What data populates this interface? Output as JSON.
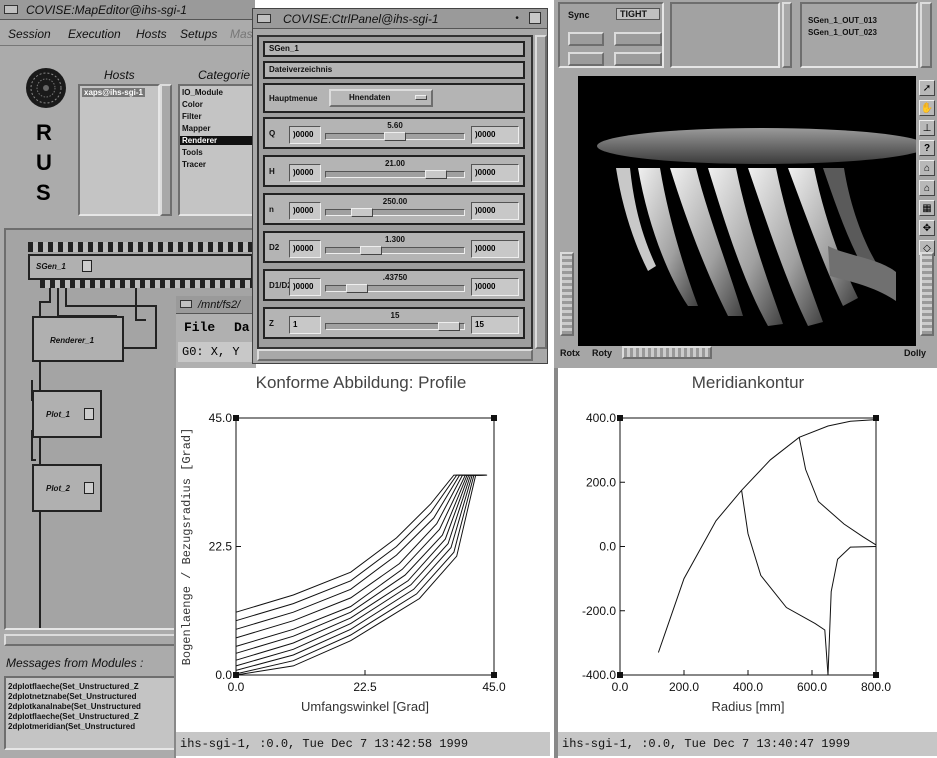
{
  "map_editor": {
    "title": "COVISE:MapEditor@ihs-sgi-1",
    "menus": [
      "Session",
      "Execution",
      "Hosts",
      "Setups",
      "Mas"
    ],
    "hosts_label": "Hosts",
    "categories_label": "Categorie",
    "host_items": [
      "xaps@ihs-sgi-1"
    ],
    "category_items": [
      "IO_Module",
      "Color",
      "Filter",
      "Mapper",
      "Renderer",
      "Tools",
      "Tracer"
    ],
    "selected_category": "Renderer",
    "logo_letters": [
      "R",
      "U",
      "S"
    ],
    "modules": [
      {
        "label": "SGen_1"
      },
      {
        "label": "Renderer_1"
      },
      {
        "label": "Plot_1"
      },
      {
        "label": "Plot_2"
      }
    ],
    "messages_label": "Messages from Modules :",
    "messages": [
      "2dplotflaeche(Set_Unstructured_Z",
      "2dplotnetznabe(Set_Unstructured",
      "2dplotkanalnabe(Set_Unstructured",
      "2dplotflaeche(Set_Unstructured_Z",
      "2dplotmeridian(Set_Unstructured"
    ]
  },
  "ctrl_panel": {
    "title": "COVISE:CtrlPanel@ihs-sgi-1",
    "module_name": "SGen_1",
    "dir_label": "Dateiverzeichnis",
    "menu_label": "Hauptmenue",
    "menu_value": "Hnendaten",
    "sliders": [
      {
        "name": "Q",
        "min": ")0000",
        "value": "5.60",
        "max": ")0000",
        "fraction": 0.5
      },
      {
        "name": "H",
        "min": ")0000",
        "value": "21.00",
        "max": ")0000",
        "fraction": 0.85
      },
      {
        "name": "n",
        "min": ")0000",
        "value": "250.00",
        "max": ")0000",
        "fraction": 0.22
      },
      {
        "name": "D2",
        "min": ")0000",
        "value": "1.300",
        "max": ")0000",
        "fraction": 0.3
      },
      {
        "name": "D1/D2",
        "min": ")0000",
        "value": ".43750",
        "max": ")0000",
        "fraction": 0.18
      },
      {
        "name": "Z",
        "min": "1",
        "value": "15",
        "max": "15",
        "fraction": 0.96
      }
    ]
  },
  "renderer": {
    "sync_label": "Sync",
    "sync_value": "TIGHT",
    "outputs": [
      "SGen_1_OUT_013",
      "SGen_1_OUT_023"
    ],
    "bottom_labels": [
      "Rotx",
      "Roty",
      "Dolly"
    ],
    "tool_icons": [
      "pointer-icon",
      "hand-icon",
      "axes-icon",
      "help-icon",
      "home-icon",
      "set-home-icon",
      "view-all-icon",
      "seek-icon",
      "perspective-icon"
    ]
  },
  "text_window": {
    "title": "/mnt/fs2/",
    "menu_items": [
      "File",
      "Da"
    ],
    "coord_line": "G0: X, Y"
  },
  "plot_left": {
    "status": "ihs-sgi-1, :0.0, Tue Dec  7 13:42:58 1999",
    "chart_data": {
      "type": "line",
      "title": "Konforme Abbildung: Profile",
      "xlabel": "Umfangswinkel [Grad]",
      "ylabel": "Bogenlaenge / Bezugsradius [Grad]",
      "xlim": [
        0.0,
        45.0
      ],
      "ylim": [
        0.0,
        45.0
      ],
      "xticks": [
        "0.0",
        "22.5",
        "45.0"
      ],
      "yticks": [
        "0.0",
        "22.5",
        "45.0"
      ],
      "series": [
        {
          "x": [
            0,
            10,
            20,
            28,
            34,
            38,
            41
          ],
          "y": [
            11,
            14,
            18,
            24,
            30,
            35,
            35
          ]
        },
        {
          "x": [
            0,
            10,
            20,
            28,
            34,
            38.5,
            41.5
          ],
          "y": [
            9.5,
            12.5,
            16.5,
            22.5,
            28.5,
            35,
            35
          ]
        },
        {
          "x": [
            0,
            10,
            20,
            28,
            34.5,
            39,
            42
          ],
          "y": [
            8,
            11,
            15,
            21,
            27.5,
            35,
            35
          ]
        },
        {
          "x": [
            0,
            10,
            20,
            28.5,
            35,
            39.5,
            42.3
          ],
          "y": [
            6.5,
            9.5,
            13.5,
            19.5,
            26.5,
            35,
            35
          ]
        },
        {
          "x": [
            0,
            10,
            20,
            29,
            35.5,
            40,
            42.6
          ],
          "y": [
            5,
            8,
            12,
            18.5,
            25.5,
            35,
            35
          ]
        },
        {
          "x": [
            0,
            10,
            20,
            29.5,
            36,
            40.3,
            42.8
          ],
          "y": [
            3.8,
            6.8,
            11,
            17.5,
            24.5,
            35,
            35
          ]
        },
        {
          "x": [
            0,
            10,
            20,
            30,
            36.5,
            40.6,
            43
          ],
          "y": [
            2.6,
            5.6,
            10,
            16.5,
            23.8,
            35,
            35
          ]
        },
        {
          "x": [
            0,
            10,
            20,
            30.5,
            37,
            40.9,
            43.2
          ],
          "y": [
            1.6,
            4.5,
            9,
            15.8,
            23,
            35,
            35
          ]
        },
        {
          "x": [
            0,
            10,
            20,
            31,
            37.5,
            41.2,
            43.4
          ],
          "y": [
            0.8,
            3.5,
            8,
            15,
            22.3,
            35,
            35
          ]
        },
        {
          "x": [
            0,
            10,
            20,
            31.5,
            38,
            41.5,
            43.6
          ],
          "y": [
            0.2,
            2.5,
            7,
            14.2,
            21.5,
            35,
            35
          ]
        },
        {
          "x": [
            0,
            10,
            20,
            32,
            38.5,
            41.8,
            43.8
          ],
          "y": [
            0,
            1.6,
            6,
            13.4,
            20.8,
            35,
            35
          ]
        }
      ]
    }
  },
  "plot_right": {
    "status": "ihs-sgi-1, :0.0, Tue Dec  7 13:40:47 1999",
    "chart_data": {
      "type": "line",
      "title": "Meridiankontur",
      "xlabel": "Radius [mm]",
      "ylabel": "",
      "xlim": [
        0.0,
        800.0
      ],
      "ylim": [
        -400.0,
        400.0
      ],
      "xticks": [
        "0.0",
        "200.0",
        "400.0",
        "600.0",
        "800.0"
      ],
      "yticks": [
        "400.0",
        "200.0",
        "0.0",
        "-200.0",
        "-400.0"
      ],
      "series": [
        {
          "x": [
            120,
            200,
            300,
            380,
            470,
            560,
            650,
            720,
            800
          ],
          "y": [
            -330,
            -100,
            80,
            175,
            270,
            340,
            375,
            390,
            395
          ]
        },
        {
          "x": [
            380,
            400,
            440,
            520,
            610,
            640,
            650
          ],
          "y": [
            175,
            40,
            -90,
            -190,
            -240,
            -260,
            -400
          ]
        },
        {
          "x": [
            560,
            580,
            620,
            700,
            760,
            800
          ],
          "y": [
            340,
            240,
            140,
            70,
            30,
            5
          ]
        },
        {
          "x": [
            800,
            720,
            680,
            660,
            650
          ],
          "y": [
            0,
            -2,
            -40,
            -140,
            -400
          ]
        }
      ]
    }
  }
}
